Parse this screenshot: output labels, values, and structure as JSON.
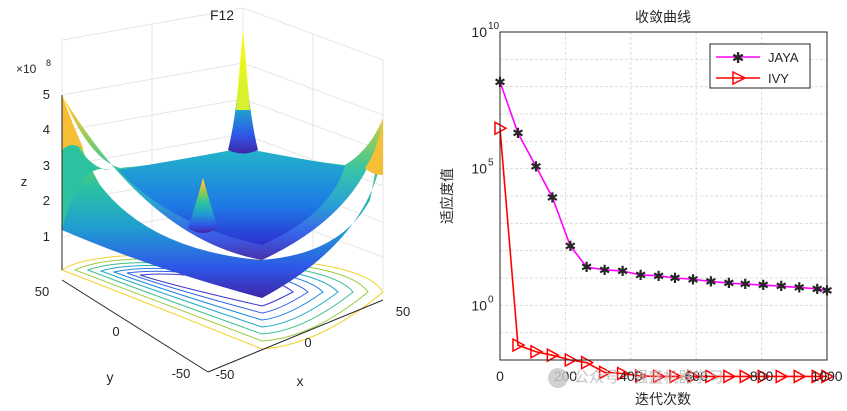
{
  "chart_data": [
    {
      "type": "surface",
      "title": "F12",
      "xlabel": "x",
      "ylabel": "y",
      "zlabel": "z",
      "z_exponent_label": "×10",
      "z_exponent": "8",
      "x_ticks": [
        "-50",
        "0",
        "50"
      ],
      "y_ticks": [
        "-50",
        "0",
        "50"
      ],
      "z_ticks": [
        "1",
        "2",
        "3",
        "4",
        "5"
      ],
      "xlim": [
        -50,
        50
      ],
      "ylim": [
        -50,
        50
      ],
      "zlim": [
        0,
        5
      ],
      "colormap": [
        "#3e26a8",
        "#2f57e8",
        "#1f9fd0",
        "#2cc2a0",
        "#80cb58",
        "#f5bf35",
        "#f9fb15"
      ],
      "grid": true
    },
    {
      "type": "line",
      "title": "收敛曲线",
      "xlabel": "迭代次数",
      "ylabel": "适应度值",
      "yscale": "log",
      "xlim": [
        0,
        1000
      ],
      "ylim_exp": [
        -2,
        10
      ],
      "x_ticks": [
        "0",
        "200",
        "400",
        "600",
        "800",
        "1000"
      ],
      "y_ticks": [
        {
          "base": "10",
          "exp": "0"
        },
        {
          "base": "10",
          "exp": "5"
        },
        {
          "base": "10",
          "exp": "10"
        }
      ],
      "grid": true,
      "legend_position": "top-right",
      "series": [
        {
          "name": "JAYA",
          "color": "#ff00ff",
          "marker": "asterisk",
          "x": [
            0,
            55,
            110,
            160,
            215,
            265,
            320,
            375,
            430,
            485,
            535,
            590,
            645,
            700,
            750,
            805,
            860,
            915,
            970,
            1000
          ],
          "y": [
            150000000.0,
            2000000.0,
            120000.0,
            9000.0,
            150.0,
            25.0,
            20.0,
            18.0,
            13.0,
            12.0,
            10.0,
            9.0,
            7.5,
            6.5,
            6.0,
            5.5,
            5.0,
            4.5,
            4.0,
            3.5
          ],
          "markers_at": [
            0,
            55,
            110,
            160,
            215,
            265,
            320,
            375,
            430,
            485,
            535,
            590,
            645,
            700,
            750,
            805,
            860,
            915,
            970,
            1000
          ]
        },
        {
          "name": "IVY",
          "color": "#ff0000",
          "marker": "triangle-right",
          "x": [
            0,
            55,
            110,
            160,
            215,
            265,
            320,
            375,
            430,
            485,
            535,
            590,
            645,
            700,
            750,
            805,
            860,
            915,
            970,
            1000
          ],
          "y": [
            3000000.0,
            0.035,
            0.02,
            0.015,
            0.01,
            0.008,
            0.0035,
            0.0032,
            0.0026,
            0.0025,
            0.0025,
            0.0025,
            0.0025,
            0.0025,
            0.0025,
            0.0025,
            0.0025,
            0.0025,
            0.0025,
            0.0025
          ],
          "markers_at": [
            0,
            55,
            110,
            160,
            215,
            265,
            320,
            375,
            430,
            485,
            535,
            590,
            645,
            700,
            750,
            805,
            860,
            915,
            970,
            1000
          ]
        }
      ]
    }
  ],
  "watermark": "公众号 · 强盛机器学习"
}
